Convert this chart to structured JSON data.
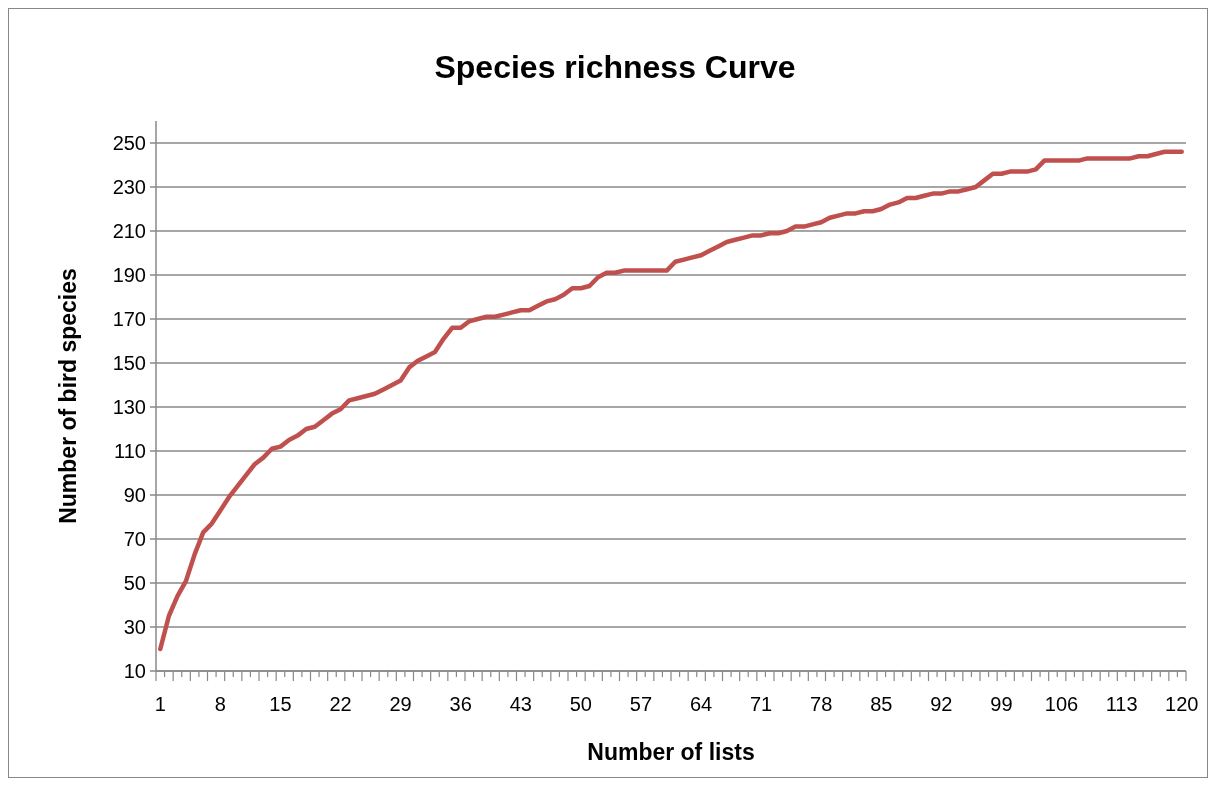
{
  "chart_data": {
    "type": "line",
    "title": "Species richness Curve",
    "xlabel": "Number of lists",
    "ylabel": "Number of bird species",
    "categories": [
      "1",
      null,
      null,
      null,
      null,
      null,
      null,
      "8",
      null,
      null,
      null,
      null,
      null,
      null,
      "15",
      null,
      null,
      null,
      null,
      null,
      null,
      "22",
      null,
      null,
      null,
      null,
      null,
      null,
      "29",
      null,
      null,
      null,
      null,
      null,
      null,
      "36",
      null,
      null,
      null,
      null,
      null,
      null,
      "43",
      null,
      null,
      null,
      null,
      null,
      null,
      "50",
      null,
      null,
      null,
      null,
      null,
      null,
      "57",
      null,
      null,
      null,
      null,
      null,
      null,
      "64",
      null,
      null,
      null,
      null,
      null,
      null,
      "71",
      null,
      null,
      null,
      null,
      null,
      null,
      "78",
      null,
      null,
      null,
      null,
      null,
      null,
      "85",
      null,
      null,
      null,
      null,
      null,
      null,
      "92",
      null,
      null,
      null,
      null,
      null,
      null,
      "99",
      null,
      null,
      null,
      null,
      null,
      null,
      "106",
      null,
      null,
      null,
      null,
      null,
      null,
      "113",
      null,
      null,
      null,
      null,
      null,
      null,
      "120"
    ],
    "series": [
      {
        "color": "#c0504d",
        "values": [
          20,
          35,
          44,
          51,
          63,
          73,
          77,
          83,
          89,
          94,
          99,
          104,
          107,
          111,
          112,
          115,
          117,
          120,
          121,
          124,
          127,
          129,
          133,
          134,
          135,
          136,
          138,
          140,
          142,
          148,
          151,
          153,
          155,
          161,
          166,
          166,
          169,
          170,
          171,
          171,
          172,
          173,
          174,
          174,
          176,
          178,
          179,
          181,
          184,
          184,
          185,
          189,
          191,
          191,
          192,
          192,
          192,
          192,
          192,
          192,
          196,
          197,
          198,
          199,
          201,
          203,
          205,
          206,
          207,
          208,
          208,
          209,
          209,
          210,
          212,
          212,
          213,
          214,
          216,
          217,
          218,
          218,
          219,
          219,
          220,
          222,
          223,
          225,
          225,
          226,
          227,
          227,
          228,
          228,
          229,
          230,
          233,
          236,
          236,
          237,
          237,
          237,
          238,
          242,
          242,
          242,
          242,
          242,
          243,
          243,
          243,
          243,
          243,
          243,
          244,
          244,
          245,
          246,
          246,
          246
        ]
      }
    ],
    "ylim": [
      10,
      260
    ],
    "yticks": [
      10,
      30,
      50,
      70,
      90,
      110,
      130,
      150,
      170,
      190,
      210,
      230,
      250
    ],
    "grid": "y"
  }
}
